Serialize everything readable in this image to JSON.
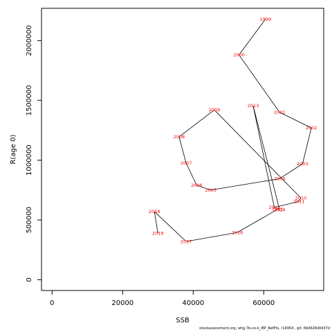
{
  "chart_data": {
    "type": "line",
    "xlabel": "SSB",
    "ylabel": "R(age 0)",
    "xlim": [
      -3000,
      77000
    ],
    "ylim": [
      -90000,
      2270000
    ],
    "x_ticks": [
      0,
      20000,
      40000,
      60000
    ],
    "x_tick_labels": [
      "0",
      "20000",
      "40000",
      "60000"
    ],
    "y_ticks": [
      0,
      500000,
      1000000,
      1500000,
      2000000
    ],
    "y_tick_labels": [
      "0",
      "500000",
      "1000000",
      "1500000",
      "2000000"
    ],
    "grid": false,
    "series": [
      {
        "points": [
          {
            "label": "1999",
            "x": 60500,
            "y": 2180000
          },
          {
            "label": "2000",
            "x": 53000,
            "y": 1880000
          },
          {
            "label": "2001",
            "x": 64500,
            "y": 1400000
          },
          {
            "label": "2002",
            "x": 73500,
            "y": 1270000
          },
          {
            "label": "2003",
            "x": 71000,
            "y": 970000
          },
          {
            "label": "2004",
            "x": 64500,
            "y": 845000
          },
          {
            "label": "2005",
            "x": 45000,
            "y": 750000
          },
          {
            "label": "2006",
            "x": 41000,
            "y": 790000
          },
          {
            "label": "2007",
            "x": 38000,
            "y": 975000
          },
          {
            "label": "2008",
            "x": 36000,
            "y": 1195000
          },
          {
            "label": "2009",
            "x": 46000,
            "y": 1420000
          },
          {
            "label": "2010",
            "x": 70500,
            "y": 685000
          },
          {
            "label": "2011",
            "x": 70000,
            "y": 655000
          },
          {
            "label": "2012",
            "x": 63000,
            "y": 605000
          },
          {
            "label": "2013",
            "x": 57000,
            "y": 1455000
          },
          {
            "label": "2014",
            "x": 64500,
            "y": 585000
          },
          {
            "label": "2015",
            "x": 64000,
            "y": 590000
          },
          {
            "label": "2016",
            "x": 52500,
            "y": 395000
          },
          {
            "label": "2017",
            "x": 38000,
            "y": 320000
          },
          {
            "label": "2018",
            "x": 29000,
            "y": 570000
          },
          {
            "label": "2019",
            "x": 30000,
            "y": 390000
          }
        ]
      }
    ]
  },
  "footer": "stockassessment.org, whg.7b-ce-k_IBP_RefPts, r14954 , git: 69d926d0437d"
}
